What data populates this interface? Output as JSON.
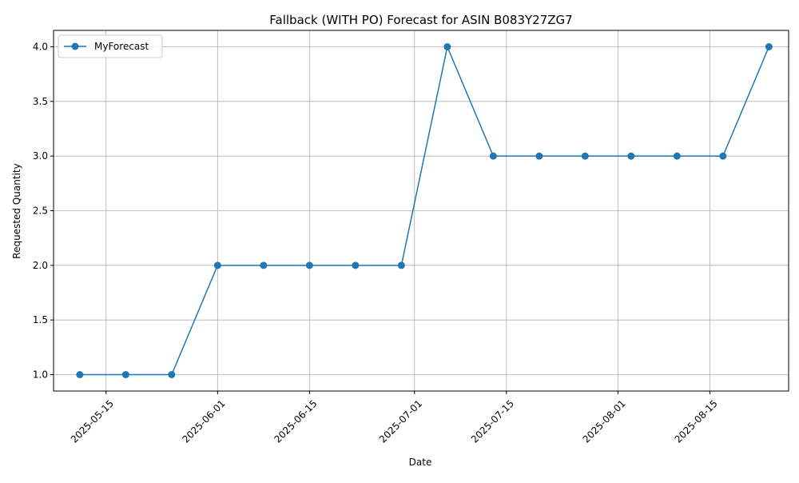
{
  "chart_data": {
    "type": "line",
    "title": "Fallback (WITH PO) Forecast for ASIN B083Y27ZG7",
    "xlabel": "Date",
    "ylabel": "Requested Quantity",
    "x_ticks": [
      "2025-05-15",
      "2025-06-01",
      "2025-06-15",
      "2025-07-01",
      "2025-07-15",
      "2025-08-01",
      "2025-08-15"
    ],
    "y_ticks": [
      "1.0",
      "1.5",
      "2.0",
      "2.5",
      "3.0",
      "3.5",
      "4.0"
    ],
    "xlim": [
      "2025-05-07",
      "2025-08-27"
    ],
    "ylim": [
      0.85,
      4.15
    ],
    "grid": true,
    "legend_position": "top-left",
    "series": [
      {
        "name": "MyForecast",
        "color": "#1f77b4",
        "marker": "circle",
        "x": [
          "2025-05-11",
          "2025-05-18",
          "2025-05-25",
          "2025-06-01",
          "2025-06-08",
          "2025-06-15",
          "2025-06-22",
          "2025-06-29",
          "2025-07-06",
          "2025-07-13",
          "2025-07-20",
          "2025-07-27",
          "2025-08-03",
          "2025-08-10",
          "2025-08-17",
          "2025-08-24"
        ],
        "values": [
          1,
          1,
          1,
          2,
          2,
          2,
          2,
          2,
          4,
          3,
          3,
          3,
          3,
          3,
          3,
          4
        ]
      }
    ]
  }
}
